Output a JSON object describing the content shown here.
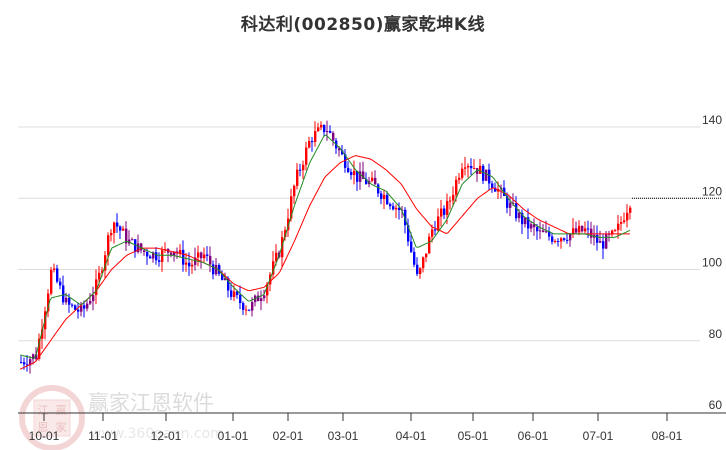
{
  "header": {
    "title": "科达利(002850)赢家乾坤K线"
  },
  "watermark": {
    "brand": "赢家江恩软件",
    "url": "www.360gann.com",
    "seal_chars": [
      "江",
      "赢",
      "恩",
      "家"
    ]
  },
  "colors": {
    "up": "#ff0000",
    "down": "#0000ff",
    "neutral": "#800080",
    "ma_short": "#228b22",
    "ma_long": "#ff0000",
    "grid": "#dddddd",
    "axis": "#333333"
  },
  "chart_data": {
    "type": "candlestick",
    "title": "科达利(002850)赢家乾坤K线",
    "xlabel": "",
    "ylabel": "",
    "ylim": [
      60,
      148
    ],
    "yticks": [
      60,
      80,
      100,
      120,
      140
    ],
    "xticks": [
      "10-01",
      "11-01",
      "12-01",
      "01-01",
      "02-01",
      "03-01",
      "04-01",
      "05-01",
      "06-01",
      "07-01",
      "08-01"
    ],
    "grid": "horizontal",
    "last_price_line": 120,
    "series": [
      {
        "name": "close_approx",
        "x": [
          "09-25",
          "10-01",
          "10-08",
          "10-15",
          "10-22",
          "11-01",
          "11-08",
          "11-15",
          "11-22",
          "12-01",
          "12-08",
          "12-15",
          "12-22",
          "01-01",
          "01-08",
          "01-15",
          "01-22",
          "02-01",
          "02-08",
          "02-15",
          "02-22",
          "03-01",
          "03-08",
          "03-15",
          "03-22",
          "04-01",
          "04-08",
          "04-15",
          "04-22",
          "05-01",
          "05-08",
          "05-15",
          "05-22",
          "06-01",
          "06-08",
          "06-15",
          "06-22",
          "07-01",
          "07-08",
          "07-15",
          "07-22"
        ],
        "values": [
          74,
          76,
          100,
          90,
          88,
          96,
          114,
          108,
          105,
          104,
          106,
          101,
          104,
          98,
          92,
          89,
          95,
          106,
          125,
          137,
          140,
          132,
          126,
          124,
          120,
          116,
          97,
          112,
          118,
          131,
          128,
          124,
          118,
          113,
          110,
          109,
          110,
          111,
          107,
          110,
          120
        ]
      },
      {
        "name": "MA_short (green)",
        "values": [
          76,
          75,
          92,
          93,
          90,
          94,
          106,
          108,
          106,
          104,
          104,
          103,
          102,
          100,
          95,
          91,
          93,
          104,
          118,
          130,
          138,
          134,
          128,
          124,
          122,
          117,
          106,
          108,
          114,
          124,
          128,
          126,
          120,
          115,
          112,
          110,
          110,
          110,
          109,
          109,
          111
        ]
      },
      {
        "name": "MA_long (red)",
        "values": [
          72,
          74,
          80,
          86,
          90,
          94,
          100,
          104,
          106,
          106,
          105,
          104,
          102,
          100,
          96,
          94,
          95,
          99,
          108,
          118,
          126,
          130,
          132,
          131,
          128,
          124,
          117,
          112,
          110,
          115,
          120,
          123,
          121,
          117,
          114,
          112,
          110,
          110,
          110,
          110,
          110
        ]
      }
    ]
  }
}
